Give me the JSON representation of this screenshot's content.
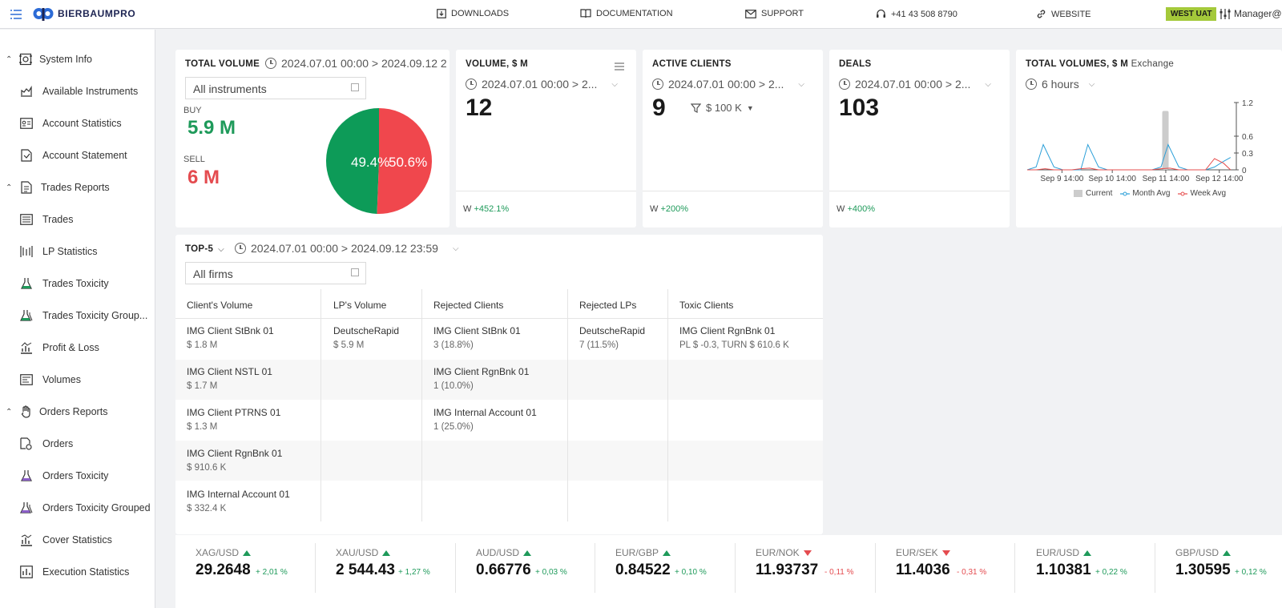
{
  "topbar": {
    "brand": "BIERBAUMPRO",
    "nav": [
      {
        "label": "DOWNLOADS",
        "icon": "download-icon"
      },
      {
        "label": "DOCUMENTATION",
        "icon": "book-icon"
      },
      {
        "label": "SUPPORT",
        "icon": "mail-icon"
      },
      {
        "label": "+41 43 508 8790",
        "icon": "headset-icon"
      },
      {
        "label": "WEBSITE",
        "icon": "link-icon"
      }
    ],
    "env_badge": "WEST UAT",
    "user": "Manager@",
    "colors": {
      "accent": "#2c6bd6",
      "badge": "#a4c93a"
    }
  },
  "sidebar": {
    "items": [
      {
        "label": "System Info",
        "type": "group",
        "icon": "system-info-icon"
      },
      {
        "label": "Available Instruments",
        "type": "item",
        "icon": "instruments-icon"
      },
      {
        "label": "Account Statistics",
        "type": "item",
        "icon": "account-card-icon"
      },
      {
        "label": "Account Statement",
        "type": "item",
        "icon": "statement-icon"
      },
      {
        "label": "Trades Reports",
        "type": "group",
        "icon": "report-icon"
      },
      {
        "label": "Trades",
        "type": "item",
        "icon": "list-icon"
      },
      {
        "label": "LP Statistics",
        "type": "item",
        "icon": "lp-stats-icon"
      },
      {
        "label": "Trades Toxicity",
        "type": "item",
        "icon": "flask-icon"
      },
      {
        "label": "Trades Toxicity Group...",
        "type": "item",
        "icon": "flask-group-icon"
      },
      {
        "label": "Profit & Loss",
        "type": "item",
        "icon": "profit-loss-icon"
      },
      {
        "label": "Volumes",
        "type": "item",
        "icon": "volumes-icon"
      },
      {
        "label": "Orders Reports",
        "type": "group",
        "icon": "hand-icon"
      },
      {
        "label": "Orders",
        "type": "item",
        "icon": "orders-icon"
      },
      {
        "label": "Orders Toxicity",
        "type": "item",
        "icon": "flask-purple-icon"
      },
      {
        "label": "Orders Toxicity Grouped",
        "type": "item",
        "icon": "flask-group-purple-icon"
      },
      {
        "label": "Cover Statistics",
        "type": "item",
        "icon": "cover-stats-icon"
      },
      {
        "label": "Execution Statistics",
        "type": "item",
        "icon": "execution-stats-icon"
      }
    ]
  },
  "total_volume": {
    "title": "TOTAL VOLUME",
    "range": "2024.07.01 00:00 > 2024.09.12 2",
    "filter": "All instruments",
    "buy_label": "BUY",
    "buy_value": "5.9 M",
    "sell_label": "SELL",
    "sell_value": "6 M",
    "pie_buy_pct": "49.4%",
    "pie_sell_pct": "50.6%",
    "pie_buy_fraction": 0.494,
    "colors": {
      "buy": "#0d9b58",
      "sell": "#f0474d"
    }
  },
  "volume_card": {
    "title": "VOLUME, $ M",
    "range": "2024.07.01 00:00 > 2...",
    "value": "12",
    "footer_prefix": "W",
    "footer_change": "+452.1%"
  },
  "clients_card": {
    "title": "ACTIVE CLIENTS",
    "range": "2024.07.01 00:00 > 2...",
    "value": "9",
    "filter": "$ 100 K",
    "footer_prefix": "W",
    "footer_change": "+200%"
  },
  "deals_card": {
    "title": "DEALS",
    "range": "2024.07.01 00:00 > 2...",
    "value": "103",
    "footer_prefix": "W",
    "footer_change": "+400%"
  },
  "volumes_chart": {
    "title": "TOTAL VOLUMES, $ M",
    "subtitle": "Exchange",
    "range": "6 hours",
    "chart_data": {
      "type": "line",
      "x": [
        "Sep 9 14:00",
        "Sep 10 14:00",
        "Sep 11 14:00",
        "Sep 12 14:00"
      ],
      "ylim": [
        0,
        1.2
      ],
      "yticks": [
        "1.2",
        "0.6",
        "0.3",
        "0"
      ],
      "series": [
        {
          "name": "Current",
          "type": "bar",
          "color": "#cccccc",
          "x": 15.5,
          "value": 1.05
        },
        {
          "name": "Month Avg",
          "color": "#2b9fd8",
          "x": [
            0,
            1,
            1.8,
            3,
            4,
            5,
            6,
            6.8,
            8,
            9,
            10,
            11,
            12,
            13,
            14,
            15,
            15.8,
            17,
            18,
            19,
            20,
            21,
            22,
            22.8
          ],
          "values": [
            0,
            0.05,
            0.45,
            0.05,
            0,
            0,
            0,
            0.45,
            0.05,
            0,
            0,
            0,
            0,
            0,
            0,
            0.05,
            0.45,
            0.05,
            0,
            0,
            0,
            0.05,
            0.15,
            0.22
          ]
        },
        {
          "name": "Week Avg",
          "color": "#e64c4c",
          "x": [
            0,
            1,
            2,
            3,
            4,
            5,
            6,
            7,
            8,
            9,
            10,
            11,
            12,
            13,
            14,
            15,
            16,
            17,
            18,
            19,
            20,
            21,
            22,
            22.8
          ],
          "values": [
            0,
            0,
            0.02,
            0,
            0,
            0,
            0.02,
            0.03,
            0,
            0,
            0,
            0,
            0,
            0,
            0,
            0.02,
            0.03,
            0,
            0,
            0,
            0,
            0.2,
            0.12,
            0
          ]
        }
      ],
      "legend": [
        "Current",
        "Month Avg",
        "Week Avg"
      ],
      "legend_placement": "bottom"
    }
  },
  "top5": {
    "title": "TOP-5",
    "range": "2024.07.01 00:00 > 2024.09.12 23:59",
    "filter": "All firms",
    "columns": [
      "Client's Volume",
      "LP's Volume",
      "Rejected Clients",
      "Rejected LPs",
      "Toxic Clients"
    ],
    "rows": [
      [
        [
          "IMG Client StBnk 01",
          "$ 1.8 M"
        ],
        [
          "DeutscheRapid",
          "$ 5.9 M"
        ],
        [
          "IMG Client StBnk 01",
          "3 (18.8%)"
        ],
        [
          "DeutscheRapid",
          "7 (11.5%)"
        ],
        [
          "IMG Client RgnBnk 01",
          "PL $ -0.3, TURN $ 610.6 K"
        ]
      ],
      [
        [
          "IMG Client NSTL 01",
          "$ 1.7 M"
        ],
        [
          "",
          ""
        ],
        [
          "IMG Client RgnBnk 01",
          "1 (10.0%)"
        ],
        [
          "",
          ""
        ],
        [
          "",
          ""
        ]
      ],
      [
        [
          "IMG Client PTRNS 01",
          "$ 1.3 M"
        ],
        [
          "",
          ""
        ],
        [
          "IMG Internal Account 01",
          "1 (25.0%)"
        ],
        [
          "",
          ""
        ],
        [
          "",
          ""
        ]
      ],
      [
        [
          "IMG Client RgnBnk 01",
          "$ 910.6 K"
        ],
        [
          "",
          ""
        ],
        [
          "",
          ""
        ],
        [
          "",
          ""
        ],
        [
          "",
          ""
        ]
      ],
      [
        [
          "IMG Internal Account 01",
          "$ 332.4 K"
        ],
        [
          "",
          ""
        ],
        [
          "",
          ""
        ],
        [
          "",
          ""
        ],
        [
          "",
          ""
        ]
      ]
    ]
  },
  "ticker": [
    {
      "pair": "XAG/USD",
      "dir": "up",
      "price": "29.2648",
      "change": "+ 2,01 %"
    },
    {
      "pair": "XAU/USD",
      "dir": "up",
      "price": "2 544.43",
      "change": "+ 1,27 %"
    },
    {
      "pair": "AUD/USD",
      "dir": "up",
      "price": "0.66776",
      "change": "+ 0,03 %"
    },
    {
      "pair": "EUR/GBP",
      "dir": "up",
      "price": "0.84522",
      "change": "+ 0,10 %"
    },
    {
      "pair": "EUR/NOK",
      "dir": "down",
      "price": "11.93737",
      "change": "- 0,11 %"
    },
    {
      "pair": "EUR/SEK",
      "dir": "down",
      "price": "11.4036",
      "change": "- 0,31 %"
    },
    {
      "pair": "EUR/USD",
      "dir": "up",
      "price": "1.10381",
      "change": "+ 0,22 %"
    },
    {
      "pair": "GBP/USD",
      "dir": "up",
      "price": "1.30595",
      "change": "+ 0,12 %"
    }
  ]
}
